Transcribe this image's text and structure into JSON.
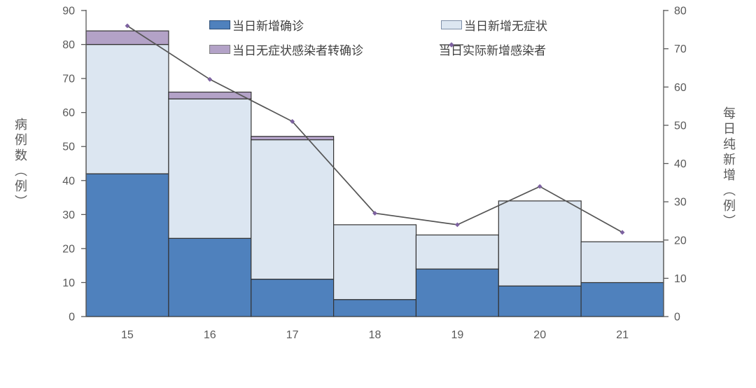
{
  "chart_data": {
    "type": "combo_stacked_bar_line",
    "categories": [
      "15",
      "16",
      "17",
      "18",
      "19",
      "20",
      "21"
    ],
    "bar_series": [
      {
        "name": "当日新增确诊",
        "color": "#4F81BD",
        "border": "#2C4D75",
        "values": [
          42,
          23,
          11,
          5,
          14,
          9,
          10
        ]
      },
      {
        "name": "当日新增无症状",
        "color": "#DCE6F1",
        "border": "#7F8FA8",
        "values": [
          38,
          41,
          41,
          22,
          10,
          25,
          12
        ]
      },
      {
        "name": "当日无症状感染者转确诊",
        "color": "#B3A2C7",
        "border": "#7F7F7F",
        "values": [
          4,
          2,
          1,
          0,
          0,
          0,
          0
        ]
      }
    ],
    "bar_totals": [
      84,
      66,
      53,
      27,
      24,
      34,
      22
    ],
    "line_series": {
      "name": "当日实际新增感染者",
      "axis": "right",
      "color": "#555555",
      "marker_color": "#7D62A0",
      "values": [
        76,
        62,
        51,
        27,
        24,
        34,
        22
      ]
    },
    "left_axis": {
      "title": "病例数（例）",
      "min": 0,
      "max": 90,
      "step": 10,
      "ticks": [
        0,
        10,
        20,
        30,
        40,
        50,
        60,
        70,
        80,
        90
      ]
    },
    "right_axis": {
      "title": "每日纯新增（例）",
      "min": 0,
      "max": 80,
      "step": 10,
      "ticks": [
        0,
        10,
        20,
        30,
        40,
        50,
        60,
        70,
        80
      ]
    },
    "style": {
      "bar_outline_color": "#333333",
      "axis_color": "#595959",
      "tick_label_color": "#595959",
      "grid": false,
      "legend_position": "top-inside"
    }
  }
}
